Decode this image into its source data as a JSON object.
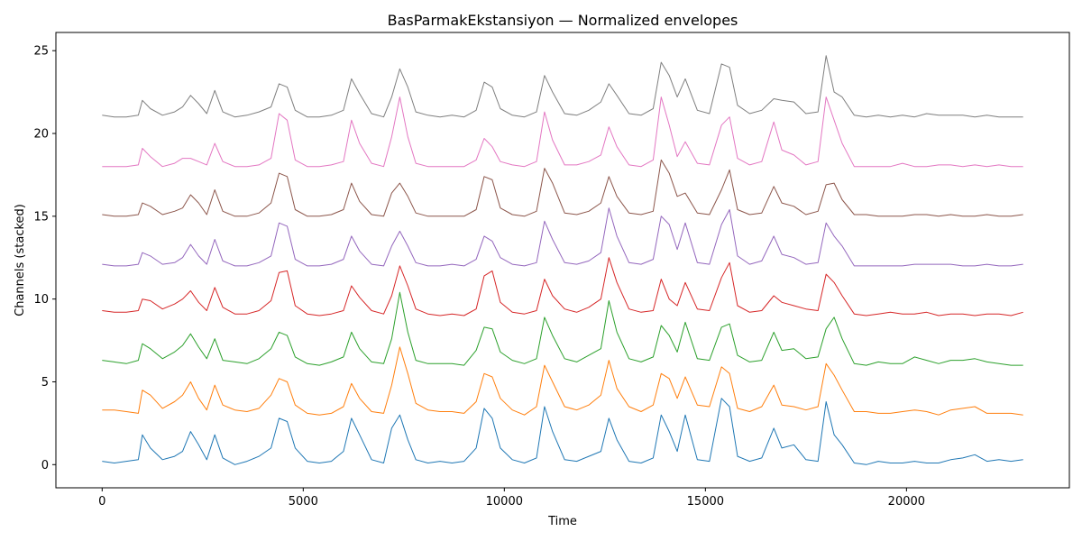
{
  "chart_data": {
    "type": "line",
    "title": "BasParmakEkstansiyon — Normalized envelopes",
    "xlabel": "Time",
    "ylabel": "Channels (stacked)",
    "xlim": [
      -1150,
      24050
    ],
    "ylim": [
      -1.4,
      26.1
    ],
    "xticks": [
      0,
      5000,
      10000,
      15000,
      20000
    ],
    "yticks": [
      0,
      5,
      10,
      15,
      20,
      25
    ],
    "grid": false,
    "x": [
      0,
      300,
      600,
      900,
      1000,
      1200,
      1500,
      1800,
      2000,
      2200,
      2400,
      2600,
      2800,
      3000,
      3300,
      3600,
      3900,
      4200,
      4400,
      4600,
      4800,
      5100,
      5400,
      5700,
      6000,
      6200,
      6400,
      6700,
      7000,
      7200,
      7400,
      7600,
      7800,
      8100,
      8400,
      8700,
      9000,
      9300,
      9500,
      9700,
      9900,
      10200,
      10500,
      10800,
      11000,
      11200,
      11500,
      11800,
      12100,
      12400,
      12600,
      12800,
      13100,
      13400,
      13700,
      13900,
      14100,
      14300,
      14500,
      14800,
      15100,
      15400,
      15600,
      15800,
      16100,
      16400,
      16700,
      16900,
      17200,
      17500,
      17800,
      18000,
      18200,
      18400,
      18700,
      19000,
      19300,
      19600,
      19900,
      20200,
      20500,
      20800,
      21100,
      21400,
      21700,
      22000,
      22300,
      22600,
      22900
    ],
    "series": [
      {
        "offset": 0,
        "color": "#1f77b4",
        "values": [
          0.2,
          0.1,
          0.2,
          0.3,
          1.8,
          1.0,
          0.3,
          0.5,
          0.8,
          2.0,
          1.2,
          0.3,
          1.8,
          0.4,
          0.0,
          0.2,
          0.5,
          1.0,
          2.8,
          2.6,
          1.0,
          0.2,
          0.1,
          0.2,
          0.8,
          2.8,
          1.8,
          0.3,
          0.1,
          2.2,
          3.0,
          1.5,
          0.3,
          0.1,
          0.2,
          0.1,
          0.2,
          1.0,
          3.4,
          2.8,
          1.0,
          0.3,
          0.1,
          0.4,
          3.5,
          2.0,
          0.3,
          0.2,
          0.5,
          0.8,
          2.8,
          1.5,
          0.2,
          0.1,
          0.4,
          3.0,
          2.0,
          0.8,
          3.0,
          0.3,
          0.2,
          4.0,
          3.5,
          0.5,
          0.2,
          0.4,
          2.2,
          1.0,
          1.2,
          0.3,
          0.2,
          3.8,
          1.8,
          1.2,
          0.1,
          0.0,
          0.2,
          0.1,
          0.1,
          0.2,
          0.1,
          0.1,
          0.3,
          0.4,
          0.6,
          0.2,
          0.3,
          0.2,
          0.3
        ]
      },
      {
        "offset": 3,
        "color": "#ff7f0e",
        "values": [
          0.3,
          0.3,
          0.2,
          0.1,
          1.5,
          1.2,
          0.4,
          0.8,
          1.2,
          2.0,
          1.0,
          0.3,
          1.8,
          0.6,
          0.3,
          0.2,
          0.4,
          1.2,
          2.2,
          2.0,
          0.6,
          0.1,
          0.0,
          0.1,
          0.5,
          1.9,
          1.0,
          0.2,
          0.1,
          1.8,
          4.1,
          2.5,
          0.7,
          0.3,
          0.2,
          0.2,
          0.1,
          0.8,
          2.5,
          2.3,
          1.0,
          0.3,
          0.0,
          0.5,
          3.0,
          2.0,
          0.5,
          0.3,
          0.6,
          1.2,
          3.3,
          1.6,
          0.5,
          0.2,
          0.6,
          2.5,
          2.2,
          1.0,
          2.3,
          0.6,
          0.5,
          2.9,
          2.5,
          0.4,
          0.2,
          0.5,
          1.8,
          0.6,
          0.5,
          0.3,
          0.5,
          3.1,
          2.4,
          1.5,
          0.2,
          0.2,
          0.1,
          0.1,
          0.2,
          0.3,
          0.2,
          0.0,
          0.3,
          0.4,
          0.5,
          0.1,
          0.1,
          0.1,
          0.0
        ]
      },
      {
        "offset": 6,
        "color": "#2ca02c",
        "values": [
          0.3,
          0.2,
          0.1,
          0.3,
          1.3,
          1.0,
          0.4,
          0.8,
          1.2,
          1.9,
          1.1,
          0.4,
          1.6,
          0.3,
          0.2,
          0.1,
          0.4,
          1.0,
          2.0,
          1.8,
          0.5,
          0.1,
          0.0,
          0.2,
          0.5,
          2.0,
          1.0,
          0.2,
          0.1,
          1.6,
          4.4,
          2.0,
          0.3,
          0.1,
          0.1,
          0.1,
          0.0,
          0.9,
          2.3,
          2.2,
          0.8,
          0.3,
          0.1,
          0.4,
          2.9,
          1.8,
          0.4,
          0.2,
          0.6,
          1.0,
          3.9,
          2.0,
          0.4,
          0.2,
          0.5,
          2.4,
          1.8,
          0.8,
          2.6,
          0.4,
          0.3,
          2.3,
          2.5,
          0.6,
          0.2,
          0.3,
          2.0,
          0.9,
          1.0,
          0.4,
          0.5,
          2.2,
          2.9,
          1.6,
          0.1,
          0.0,
          0.2,
          0.1,
          0.1,
          0.5,
          0.3,
          0.1,
          0.3,
          0.3,
          0.4,
          0.2,
          0.1,
          0.0,
          0.0
        ]
      },
      {
        "offset": 9,
        "color": "#d62728",
        "values": [
          0.3,
          0.2,
          0.2,
          0.3,
          1.0,
          0.9,
          0.4,
          0.7,
          1.0,
          1.5,
          0.8,
          0.3,
          1.7,
          0.5,
          0.1,
          0.1,
          0.3,
          0.9,
          2.6,
          2.7,
          0.6,
          0.1,
          0.0,
          0.1,
          0.3,
          1.8,
          1.1,
          0.3,
          0.1,
          1.2,
          3.0,
          1.8,
          0.4,
          0.1,
          0.0,
          0.1,
          0.0,
          0.4,
          2.4,
          2.7,
          0.8,
          0.2,
          0.1,
          0.3,
          2.2,
          1.2,
          0.4,
          0.2,
          0.5,
          1.0,
          3.5,
          2.0,
          0.4,
          0.2,
          0.3,
          2.2,
          1.0,
          0.6,
          2.0,
          0.4,
          0.3,
          2.3,
          3.2,
          0.6,
          0.2,
          0.3,
          1.2,
          0.8,
          0.6,
          0.4,
          0.3,
          2.5,
          2.0,
          1.2,
          0.1,
          0.0,
          0.1,
          0.2,
          0.1,
          0.1,
          0.2,
          0.0,
          0.1,
          0.1,
          0.0,
          0.1,
          0.1,
          0.0,
          0.2
        ]
      },
      {
        "offset": 12,
        "color": "#9467bd",
        "values": [
          0.1,
          0.0,
          0.0,
          0.1,
          0.8,
          0.6,
          0.1,
          0.2,
          0.5,
          1.3,
          0.6,
          0.1,
          1.6,
          0.3,
          0.0,
          0.0,
          0.2,
          0.6,
          2.6,
          2.4,
          0.4,
          0.0,
          0.0,
          0.1,
          0.4,
          1.8,
          0.9,
          0.1,
          0.0,
          1.2,
          2.1,
          1.2,
          0.2,
          0.0,
          0.0,
          0.1,
          0.0,
          0.4,
          1.8,
          1.5,
          0.5,
          0.1,
          0.0,
          0.2,
          2.7,
          1.6,
          0.2,
          0.1,
          0.3,
          0.8,
          3.5,
          1.8,
          0.2,
          0.1,
          0.4,
          3.0,
          2.5,
          1.0,
          2.6,
          0.2,
          0.1,
          2.5,
          3.4,
          0.6,
          0.1,
          0.3,
          1.8,
          0.7,
          0.5,
          0.1,
          0.2,
          2.6,
          1.8,
          1.2,
          0.0,
          0.0,
          0.0,
          0.0,
          0.0,
          0.1,
          0.1,
          0.1,
          0.1,
          0.0,
          0.0,
          0.1,
          0.0,
          0.0,
          0.1
        ]
      },
      {
        "offset": 15,
        "color": "#8c564b",
        "values": [
          0.1,
          0.0,
          0.0,
          0.1,
          0.8,
          0.6,
          0.1,
          0.3,
          0.5,
          1.3,
          0.8,
          0.1,
          1.6,
          0.3,
          0.0,
          0.0,
          0.2,
          0.8,
          2.6,
          2.4,
          0.4,
          0.0,
          0.0,
          0.1,
          0.4,
          2.0,
          0.9,
          0.1,
          0.0,
          1.4,
          2.0,
          1.2,
          0.2,
          0.0,
          0.0,
          0.0,
          0.0,
          0.4,
          2.4,
          2.2,
          0.5,
          0.1,
          0.0,
          0.3,
          2.9,
          2.0,
          0.2,
          0.1,
          0.3,
          0.8,
          2.4,
          1.2,
          0.2,
          0.1,
          0.3,
          3.4,
          2.6,
          1.2,
          1.4,
          0.2,
          0.1,
          1.6,
          2.8,
          0.4,
          0.1,
          0.2,
          1.8,
          0.8,
          0.6,
          0.1,
          0.3,
          1.9,
          2.0,
          1.0,
          0.1,
          0.1,
          0.0,
          0.0,
          0.0,
          0.1,
          0.1,
          0.0,
          0.1,
          0.0,
          0.0,
          0.1,
          0.0,
          0.0,
          0.1
        ]
      },
      {
        "offset": 18,
        "color": "#e377c2",
        "values": [
          0.0,
          0.0,
          0.0,
          0.1,
          1.1,
          0.6,
          0.0,
          0.2,
          0.5,
          0.5,
          0.3,
          0.1,
          1.4,
          0.3,
          0.0,
          0.0,
          0.1,
          0.5,
          3.2,
          2.8,
          0.4,
          0.0,
          0.0,
          0.1,
          0.3,
          2.8,
          1.4,
          0.2,
          0.0,
          1.8,
          4.2,
          1.8,
          0.2,
          0.0,
          0.0,
          0.0,
          0.0,
          0.4,
          1.7,
          1.2,
          0.3,
          0.1,
          0.0,
          0.3,
          3.3,
          1.6,
          0.1,
          0.1,
          0.3,
          0.7,
          2.4,
          1.2,
          0.1,
          0.0,
          0.4,
          4.2,
          2.5,
          0.6,
          1.5,
          0.2,
          0.1,
          2.5,
          3.0,
          0.5,
          0.1,
          0.3,
          2.7,
          1.0,
          0.7,
          0.1,
          0.3,
          4.2,
          2.8,
          1.4,
          0.0,
          0.0,
          0.0,
          0.0,
          0.2,
          0.0,
          0.0,
          0.1,
          0.1,
          0.0,
          0.1,
          0.0,
          0.1,
          0.0,
          0.0
        ]
      },
      {
        "offset": 21,
        "color": "#7f7f7f",
        "values": [
          0.1,
          0.0,
          0.0,
          0.1,
          1.0,
          0.5,
          0.1,
          0.3,
          0.6,
          1.3,
          0.8,
          0.2,
          1.6,
          0.3,
          0.0,
          0.1,
          0.3,
          0.6,
          2.0,
          1.8,
          0.4,
          0.0,
          0.0,
          0.1,
          0.4,
          2.3,
          1.4,
          0.2,
          0.0,
          1.2,
          2.9,
          1.8,
          0.3,
          0.1,
          0.0,
          0.1,
          0.0,
          0.4,
          2.1,
          1.8,
          0.5,
          0.1,
          0.0,
          0.3,
          2.5,
          1.5,
          0.2,
          0.1,
          0.4,
          0.9,
          2.0,
          1.3,
          0.2,
          0.1,
          0.5,
          3.3,
          2.5,
          1.2,
          2.3,
          0.4,
          0.2,
          3.2,
          3.0,
          0.7,
          0.2,
          0.4,
          1.1,
          1.0,
          0.9,
          0.2,
          0.3,
          3.7,
          1.5,
          1.2,
          0.1,
          0.0,
          0.1,
          0.0,
          0.1,
          0.0,
          0.2,
          0.1,
          0.1,
          0.1,
          0.0,
          0.1,
          0.0,
          0.0,
          0.0
        ]
      }
    ]
  }
}
